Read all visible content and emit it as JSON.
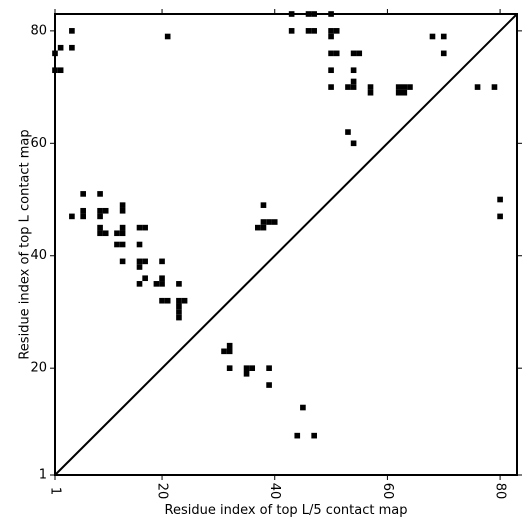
{
  "chart_data": {
    "type": "scatter",
    "title": "",
    "xlabel": "Residue index of top L/5 contact map",
    "ylabel": "Residue index of top L contact map",
    "xlim": [
      1,
      83
    ],
    "ylim": [
      1,
      83
    ],
    "xticks": [
      1,
      20,
      40,
      60,
      80
    ],
    "yticks": [
      1,
      20,
      40,
      60,
      80
    ],
    "xtick_labels": [
      "1",
      "20",
      "40",
      "60",
      "80"
    ],
    "ytick_labels": [
      "1",
      "20",
      "40",
      "60",
      "80"
    ],
    "grid": false,
    "diagonal": true,
    "marker": "square",
    "color": "#000000",
    "series": [
      {
        "values": [
          [
            1,
            76
          ],
          [
            1,
            73
          ],
          [
            2,
            73
          ],
          [
            2,
            77
          ],
          [
            4,
            80
          ],
          [
            4,
            77
          ],
          [
            21,
            79
          ],
          [
            43,
            83
          ],
          [
            46,
            83
          ],
          [
            47,
            83
          ],
          [
            50,
            83
          ],
          [
            43,
            80
          ],
          [
            46,
            80
          ],
          [
            47,
            80
          ],
          [
            50,
            80
          ],
          [
            51,
            80
          ],
          [
            50,
            79
          ],
          [
            50,
            76
          ],
          [
            51,
            76
          ],
          [
            54,
            76
          ],
          [
            55,
            76
          ],
          [
            50,
            73
          ],
          [
            54,
            73
          ],
          [
            54,
            71
          ],
          [
            50,
            70
          ],
          [
            53,
            70
          ],
          [
            54,
            70
          ],
          [
            57,
            70
          ],
          [
            57,
            69
          ],
          [
            62,
            70
          ],
          [
            63,
            70
          ],
          [
            64,
            70
          ],
          [
            62,
            69
          ],
          [
            63,
            69
          ],
          [
            68,
            79
          ],
          [
            70,
            79
          ],
          [
            70,
            76
          ],
          [
            76,
            70
          ],
          [
            79,
            70
          ],
          [
            53,
            62
          ],
          [
            54,
            60
          ],
          [
            80,
            50
          ],
          [
            80,
            47
          ],
          [
            6,
            51
          ],
          [
            9,
            51
          ],
          [
            4,
            47
          ],
          [
            6,
            48
          ],
          [
            6,
            47
          ],
          [
            9,
            48
          ],
          [
            10,
            48
          ],
          [
            9,
            47
          ],
          [
            9,
            45
          ],
          [
            9,
            44
          ],
          [
            10,
            44
          ],
          [
            12,
            44
          ],
          [
            13,
            45
          ],
          [
            13,
            44
          ],
          [
            12,
            42
          ],
          [
            13,
            42
          ],
          [
            13,
            49
          ],
          [
            13,
            48
          ],
          [
            13,
            39
          ],
          [
            16,
            45
          ],
          [
            17,
            45
          ],
          [
            16,
            42
          ],
          [
            16,
            39
          ],
          [
            17,
            39
          ],
          [
            16,
            38
          ],
          [
            20,
            39
          ],
          [
            17,
            36
          ],
          [
            20,
            36
          ],
          [
            16,
            35
          ],
          [
            19,
            35
          ],
          [
            20,
            35
          ],
          [
            23,
            35
          ],
          [
            20,
            32
          ],
          [
            21,
            32
          ],
          [
            23,
            32
          ],
          [
            24,
            32
          ],
          [
            23,
            31
          ],
          [
            23,
            30
          ],
          [
            23,
            29
          ],
          [
            38,
            49
          ],
          [
            38,
            46
          ],
          [
            39,
            46
          ],
          [
            40,
            46
          ],
          [
            38,
            45
          ],
          [
            37,
            45
          ],
          [
            31,
            23
          ],
          [
            32,
            23
          ],
          [
            32,
            24
          ],
          [
            32,
            20
          ],
          [
            35,
            20
          ],
          [
            36,
            20
          ],
          [
            35,
            19
          ],
          [
            39,
            20
          ],
          [
            39,
            17
          ],
          [
            45,
            13
          ],
          [
            44,
            8
          ],
          [
            47,
            8
          ]
        ]
      }
    ]
  }
}
